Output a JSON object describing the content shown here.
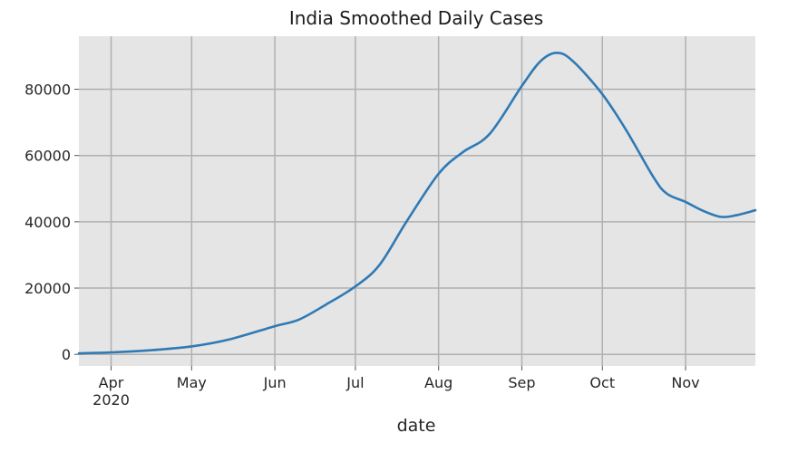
{
  "chart_data": {
    "type": "line",
    "title": "India Smoothed Daily Cases",
    "xlabel": "date",
    "ylabel": "",
    "x_range": [
      "2020-03-20",
      "2020-11-27"
    ],
    "ylim": [
      -3500,
      96000
    ],
    "yticks": [
      0,
      20000,
      40000,
      60000,
      80000
    ],
    "ytick_labels": [
      "0",
      "20000",
      "40000",
      "60000",
      "80000"
    ],
    "xticks": [
      {
        "date": "2020-04-01",
        "label": "Apr",
        "sublabel": "2020"
      },
      {
        "date": "2020-05-01",
        "label": "May",
        "sublabel": ""
      },
      {
        "date": "2020-06-01",
        "label": "Jun",
        "sublabel": ""
      },
      {
        "date": "2020-07-01",
        "label": "Jul",
        "sublabel": ""
      },
      {
        "date": "2020-08-01",
        "label": "Aug",
        "sublabel": ""
      },
      {
        "date": "2020-09-01",
        "label": "Sep",
        "sublabel": ""
      },
      {
        "date": "2020-10-01",
        "label": "Oct",
        "sublabel": ""
      },
      {
        "date": "2020-11-01",
        "label": "Nov",
        "sublabel": ""
      }
    ],
    "grid": true,
    "style": {
      "background": "#e5e5e5",
      "grid_color": "#b0b0b0",
      "line_color": "#2f7ab5"
    },
    "series": [
      {
        "name": "",
        "x": [
          "2020-03-20",
          "2020-04-01",
          "2020-04-15",
          "2020-05-01",
          "2020-05-15",
          "2020-06-01",
          "2020-06-10",
          "2020-06-20",
          "2020-07-01",
          "2020-07-10",
          "2020-07-20",
          "2020-08-01",
          "2020-08-10",
          "2020-08-20",
          "2020-09-01",
          "2020-09-08",
          "2020-09-14",
          "2020-09-20",
          "2020-10-01",
          "2020-10-10",
          "2020-10-20",
          "2020-10-25",
          "2020-11-01",
          "2020-11-07",
          "2020-11-14",
          "2020-11-20",
          "2020-11-27"
        ],
        "y": [
          300,
          600,
          1200,
          2400,
          4500,
          8500,
          10500,
          15000,
          20500,
          27000,
          40000,
          54500,
          61000,
          66500,
          81000,
          88500,
          91000,
          88500,
          78500,
          67500,
          53500,
          48500,
          46000,
          43500,
          41500,
          42000,
          43500
        ]
      }
    ]
  }
}
